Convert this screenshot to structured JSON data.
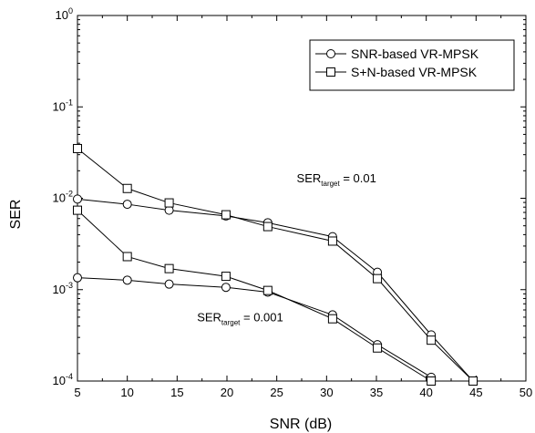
{
  "chart_data": {
    "type": "line",
    "xlabel": "SNR (dB)",
    "ylabel": "SER",
    "xlim": [
      5,
      50
    ],
    "ylim": [
      0.0001,
      1
    ],
    "yscale": "log",
    "xticks": [
      "5",
      "10",
      "15",
      "20",
      "25",
      "30",
      "35",
      "40",
      "45",
      "50"
    ],
    "legend_position": "top-right",
    "series": [
      {
        "name": "SNR-based VR-MPSK",
        "marker": "circle",
        "group": "SER_target = 0.01",
        "x": [
          5,
          10,
          14.2,
          19.9,
          24.1,
          30.6,
          35.1,
          40.5,
          44.7
        ],
        "y": [
          0.0098,
          0.0086,
          0.0074,
          0.0064,
          0.0054,
          0.0038,
          0.00155,
          0.00032,
          0.0001
        ]
      },
      {
        "name": "S+N-based VR-MPSK",
        "marker": "square",
        "group": "SER_target = 0.01",
        "x": [
          5,
          10,
          14.2,
          19.9,
          24.1,
          30.6,
          35.1,
          40.5,
          44.7
        ],
        "y": [
          0.035,
          0.0128,
          0.0089,
          0.0066,
          0.0049,
          0.0034,
          0.00132,
          0.00028,
          0.0001
        ]
      },
      {
        "name": "SNR-based VR-MPSK",
        "marker": "circle",
        "group": "SER_target = 0.001",
        "x": [
          5,
          10,
          14.2,
          19.9,
          24.1,
          30.6,
          35.1,
          40.5
        ],
        "y": [
          0.00135,
          0.00127,
          0.00115,
          0.00106,
          0.00094,
          0.00053,
          0.00025,
          0.00011
        ]
      },
      {
        "name": "S+N-based VR-MPSK",
        "marker": "square",
        "group": "SER_target = 0.001",
        "x": [
          5,
          10,
          14.2,
          19.9,
          24.1,
          30.6,
          35.1,
          40.5
        ],
        "y": [
          0.0074,
          0.0023,
          0.0017,
          0.0014,
          0.00098,
          0.00048,
          0.00023,
          0.0001
        ]
      }
    ],
    "legend": [
      {
        "label": "SNR-based VR-MPSK",
        "marker": "circle"
      },
      {
        "label": "S+N-based VR-MPSK",
        "marker": "square"
      }
    ],
    "annotations": [
      {
        "main": "SER",
        "sub": "target",
        "suffix": " = 0.01",
        "x": 27,
        "y": 0.015
      },
      {
        "main": "SER",
        "sub": "target",
        "suffix": " = 0.001",
        "x": 17,
        "y": 0.00045
      }
    ]
  }
}
